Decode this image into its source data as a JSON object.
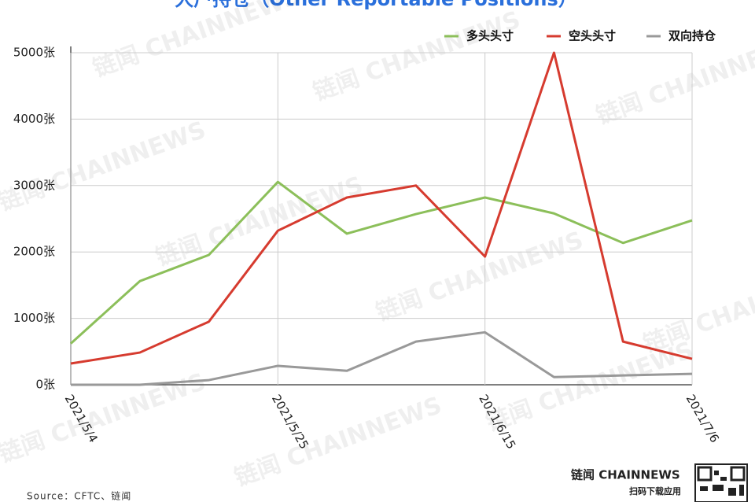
{
  "chart_data": {
    "type": "line",
    "title": "大户持仓（Other Reportable Positions）",
    "categories": [
      "2021/5/4",
      null,
      null,
      "2021/5/25",
      null,
      null,
      "2021/6/15",
      null,
      null,
      "2021/7/6"
    ],
    "series": [
      {
        "name": "多头头寸",
        "color": "#8cbf5a",
        "values": [
          620,
          1560,
          1955,
          3055,
          2275,
          2570,
          2820,
          2580,
          2135,
          2475
        ]
      },
      {
        "name": "空头头寸",
        "color": "#d63b2f",
        "values": [
          320,
          485,
          950,
          2320,
          2820,
          3000,
          1930,
          5000,
          650,
          390
        ]
      },
      {
        "name": "双向持仓",
        "color": "#999999",
        "values": [
          0,
          0,
          70,
          285,
          210,
          650,
          790,
          115,
          140,
          165
        ]
      }
    ],
    "ylim": [
      0,
      5000
    ],
    "yticks": [
      {
        "value": 0,
        "label": "0张"
      },
      {
        "value": 1000,
        "label": "1000张"
      },
      {
        "value": 2000,
        "label": "2000张"
      },
      {
        "value": 3000,
        "label": "3000张"
      },
      {
        "value": 4000,
        "label": "4000张"
      },
      {
        "value": 5000,
        "label": "5000张"
      }
    ],
    "grid": true,
    "legend": "top-right",
    "source": "Source：CFTC、链闻",
    "watermark": "链闻 CHAINNEWS",
    "brand": "链闻 CHAINNEWS",
    "brand_caption": "扫码下载应用"
  }
}
